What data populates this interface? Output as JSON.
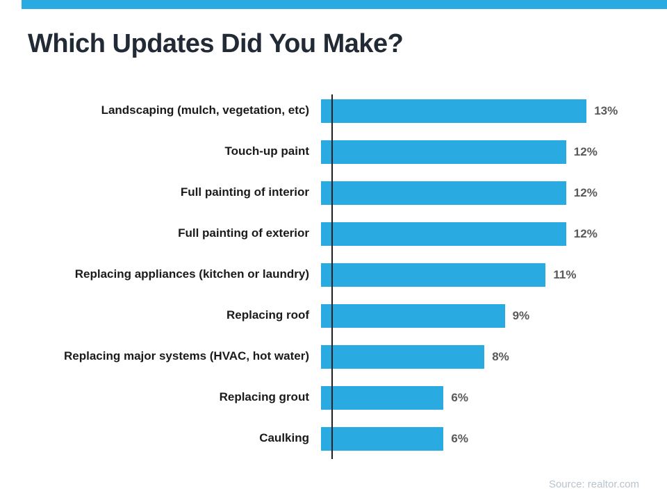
{
  "chart_data": {
    "type": "bar",
    "orientation": "horizontal",
    "title": "Which Updates Did You Make?",
    "categories": [
      "Landscaping (mulch, vegetation, etc)",
      "Touch-up paint",
      "Full painting of interior",
      "Full painting of exterior",
      "Replacing appliances (kitchen or laundry)",
      "Replacing roof",
      "Replacing major systems (HVAC, hot water)",
      "Replacing grout",
      "Caulking"
    ],
    "values": [
      13,
      12,
      12,
      12,
      11,
      9,
      8,
      6,
      6
    ],
    "value_suffix": "%",
    "xlim": [
      0,
      13
    ],
    "legend": "none",
    "grid": "off",
    "bar_color": "#29abe2",
    "value_label_color": "#58595b",
    "source": "Source: realtor.com"
  }
}
